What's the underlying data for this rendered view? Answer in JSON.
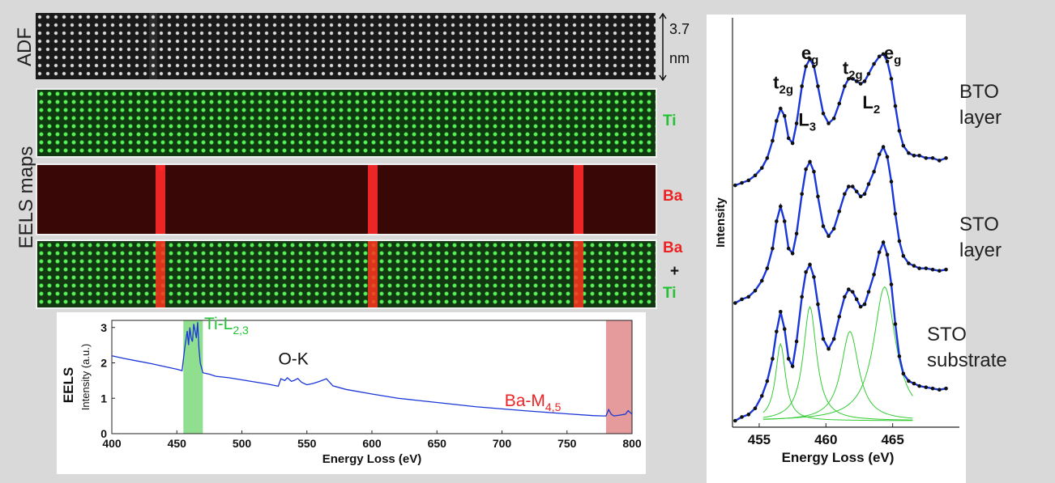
{
  "labels": {
    "adf": "ADF",
    "eels_maps": "EELS maps",
    "scalebar_value": "3.7",
    "scalebar_unit": "nm",
    "ti": "Ti",
    "ba": "Ba",
    "ba_combo": "Ba",
    "plus": "+",
    "ti_combo": "Ti",
    "eels": "EELS"
  },
  "layers": {
    "bto_line1": "BTO",
    "bto_line2": "layer",
    "sto_line1": "STO",
    "sto_line2": "layer",
    "sub_line1": "STO",
    "sub_line2": "substrate"
  },
  "colors": {
    "ti": "#22c232",
    "ba": "#ee2222",
    "spectrum_line": "#1a36d6",
    "fit_line": "#1a36d6",
    "component_line": "#33cc33",
    "ti_band": "#7dd97d",
    "ba_band": "#e08a8a"
  },
  "chart_data": [
    {
      "type": "line",
      "name": "eels-spectrum",
      "title": "",
      "side_label": "EELS",
      "xlabel": "Energy Loss (eV)",
      "ylabel": "Intensity (a.u.)",
      "xlim": [
        400,
        800
      ],
      "ylim": [
        0,
        3.2
      ],
      "xticks": [
        400,
        450,
        500,
        550,
        600,
        650,
        700,
        750,
        800
      ],
      "yticks": [
        0,
        1,
        2,
        3
      ],
      "bands": [
        {
          "x0": 455,
          "x1": 470,
          "color": "ti_band"
        },
        {
          "x0": 780,
          "x1": 800,
          "color": "ba_band"
        }
      ],
      "x": [
        400,
        410,
        420,
        430,
        440,
        450,
        454,
        456,
        458,
        459,
        460,
        461,
        462,
        463,
        464,
        465,
        466,
        467,
        468,
        470,
        475,
        480,
        490,
        500,
        510,
        520,
        528,
        530,
        533,
        535,
        538,
        540,
        543,
        546,
        550,
        555,
        560,
        565,
        570,
        580,
        600,
        620,
        650,
        680,
        700,
        720,
        750,
        770,
        778,
        780,
        782,
        784,
        786,
        790,
        795,
        797,
        800
      ],
      "y": [
        2.2,
        2.12,
        2.05,
        1.98,
        1.9,
        1.82,
        1.78,
        2.4,
        2.9,
        2.5,
        3.0,
        2.7,
        2.6,
        3.1,
        2.9,
        2.7,
        3.15,
        2.4,
        2.0,
        1.72,
        1.68,
        1.62,
        1.58,
        1.52,
        1.46,
        1.4,
        1.34,
        1.55,
        1.5,
        1.58,
        1.48,
        1.5,
        1.56,
        1.45,
        1.38,
        1.42,
        1.48,
        1.55,
        1.35,
        1.25,
        1.12,
        1.0,
        0.88,
        0.76,
        0.7,
        0.64,
        0.56,
        0.51,
        0.5,
        0.5,
        0.68,
        0.55,
        0.5,
        0.52,
        0.55,
        0.65,
        0.55
      ],
      "annotations": [
        {
          "text": "Ti-L",
          "sub": "2,3",
          "x": 471,
          "y": 2.95,
          "color": "ti"
        },
        {
          "text": "O-K",
          "sub": "",
          "x": 528,
          "y": 1.95,
          "color": "#111111"
        },
        {
          "text": "Ba-M",
          "sub": "4,5",
          "x": 702,
          "y": 0.78,
          "color": "ba"
        }
      ]
    },
    {
      "type": "line",
      "name": "ti-l23-spectra",
      "title": "",
      "xlabel": "Energy Loss (eV)",
      "ylabel": "Intensity",
      "xlim": [
        453,
        470
      ],
      "xticks": [
        455,
        460,
        465
      ],
      "peak_labels": [
        {
          "text": "t",
          "sub": "2g",
          "x": 456.8,
          "y": 0.78
        },
        {
          "text": "e",
          "sub": "g",
          "x": 458.8,
          "y": 1.02
        },
        {
          "text": "t",
          "sub": "2g",
          "x": 462.0,
          "y": 0.9
        },
        {
          "text": "e",
          "sub": "g",
          "x": 465.0,
          "y": 1.02
        },
        {
          "text": "L",
          "sub": "3",
          "x": 458.6,
          "y": 0.48
        },
        {
          "text": "L",
          "sub": "2",
          "x": 463.4,
          "y": 0.62
        }
      ],
      "series": [
        {
          "name": "",
          "offset": 1.9,
          "x": [
            453.2,
            453.7,
            454.2,
            454.7,
            455.2,
            455.6,
            456.0,
            456.3,
            456.6,
            456.9,
            457.2,
            457.5,
            457.8,
            458.2,
            458.5,
            458.8,
            459.1,
            459.4,
            459.8,
            460.2,
            460.6,
            461.0,
            461.4,
            461.7,
            462.0,
            462.3,
            462.6,
            462.9,
            463.2,
            463.6,
            464.0,
            464.3,
            464.6,
            464.9,
            465.2,
            465.5,
            465.8,
            466.2,
            466.6,
            467.0,
            467.5,
            468.0,
            468.5,
            469.0
          ],
          "y": [
            0.0,
            0.02,
            0.04,
            0.08,
            0.14,
            0.22,
            0.36,
            0.52,
            0.62,
            0.56,
            0.38,
            0.34,
            0.5,
            0.8,
            0.96,
            1.02,
            0.96,
            0.8,
            0.58,
            0.5,
            0.54,
            0.66,
            0.8,
            0.86,
            0.86,
            0.84,
            0.82,
            0.84,
            0.9,
            0.98,
            1.04,
            1.06,
            1.0,
            0.86,
            0.64,
            0.44,
            0.32,
            0.26,
            0.24,
            0.24,
            0.22,
            0.22,
            0.2,
            0.22
          ]
        },
        {
          "name": "",
          "offset": 0.95,
          "x": [
            453.2,
            453.7,
            454.2,
            454.7,
            455.2,
            455.6,
            456.0,
            456.3,
            456.6,
            456.9,
            457.2,
            457.5,
            457.8,
            458.2,
            458.5,
            458.8,
            459.1,
            459.4,
            459.8,
            460.2,
            460.6,
            461.0,
            461.4,
            461.7,
            462.0,
            462.3,
            462.6,
            462.9,
            463.2,
            463.6,
            464.0,
            464.3,
            464.6,
            464.9,
            465.2,
            465.5,
            465.8,
            466.2,
            466.6,
            467.0,
            467.5,
            468.0,
            468.5,
            469.0
          ],
          "y": [
            0.0,
            0.03,
            0.05,
            0.1,
            0.18,
            0.28,
            0.44,
            0.66,
            0.78,
            0.66,
            0.44,
            0.4,
            0.56,
            0.88,
            1.08,
            1.14,
            1.06,
            0.86,
            0.62,
            0.54,
            0.6,
            0.74,
            0.88,
            0.94,
            0.94,
            0.9,
            0.86,
            0.88,
            0.96,
            1.06,
            1.2,
            1.26,
            1.18,
            0.98,
            0.72,
            0.5,
            0.38,
            0.32,
            0.3,
            0.28,
            0.28,
            0.27,
            0.26,
            0.27
          ]
        },
        {
          "name": "",
          "offset": 0.0,
          "x": [
            453.2,
            453.7,
            454.2,
            454.7,
            455.2,
            455.6,
            456.0,
            456.3,
            456.6,
            456.9,
            457.2,
            457.5,
            457.8,
            458.2,
            458.5,
            458.8,
            459.1,
            459.4,
            459.8,
            460.2,
            460.6,
            461.0,
            461.4,
            461.7,
            462.0,
            462.3,
            462.6,
            462.9,
            463.2,
            463.6,
            464.0,
            464.3,
            464.6,
            464.9,
            465.2,
            465.5,
            465.8,
            466.2,
            466.6,
            467.0,
            467.5,
            468.0,
            468.5,
            469.0
          ],
          "y": [
            0.0,
            0.03,
            0.05,
            0.1,
            0.2,
            0.32,
            0.5,
            0.72,
            0.88,
            0.74,
            0.5,
            0.44,
            0.64,
            1.0,
            1.2,
            1.26,
            1.16,
            0.94,
            0.66,
            0.58,
            0.66,
            0.84,
            1.0,
            1.06,
            1.04,
            0.98,
            0.92,
            0.94,
            1.04,
            1.18,
            1.36,
            1.44,
            1.34,
            1.1,
            0.78,
            0.52,
            0.38,
            0.32,
            0.3,
            0.28,
            0.27,
            0.26,
            0.25,
            0.26
          ]
        }
      ],
      "components": [
        {
          "center": 456.6,
          "width": 0.45,
          "height": 0.62
        },
        {
          "center": 458.8,
          "width": 0.6,
          "height": 0.92
        },
        {
          "center": 461.8,
          "width": 0.8,
          "height": 0.72
        },
        {
          "center": 464.4,
          "width": 1.0,
          "height": 1.08
        }
      ]
    }
  ]
}
